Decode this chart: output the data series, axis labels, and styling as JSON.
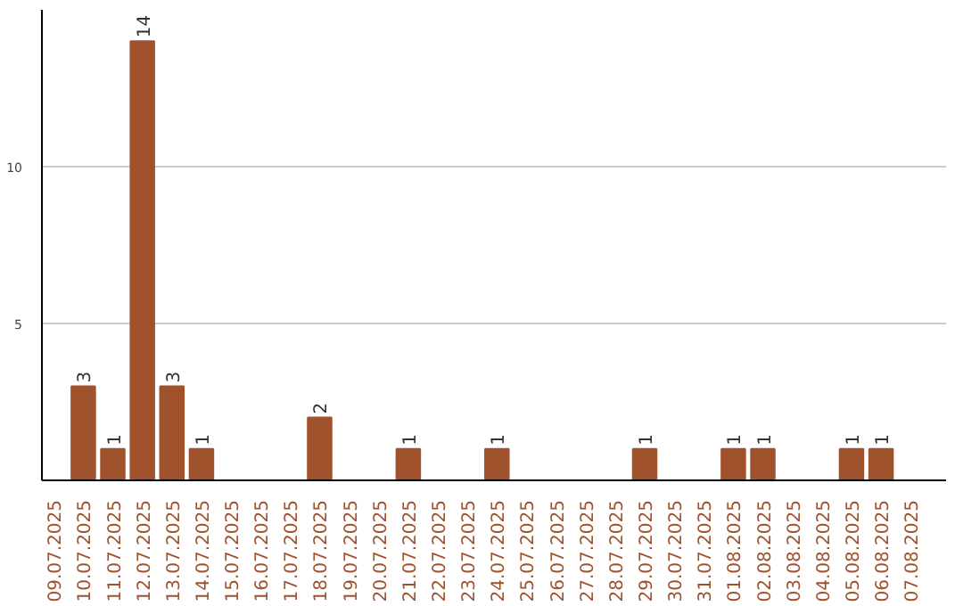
{
  "chart_data": {
    "type": "bar",
    "categories": [
      "09.07.2025",
      "10.07.2025",
      "11.07.2025",
      "12.07.2025",
      "13.07.2025",
      "14.07.2025",
      "15.07.2025",
      "16.07.2025",
      "17.07.2025",
      "18.07.2025",
      "19.07.2025",
      "20.07.2025",
      "21.07.2025",
      "22.07.2025",
      "23.07.2025",
      "24.07.2025",
      "25.07.2025",
      "26.07.2025",
      "27.07.2025",
      "28.07.2025",
      "29.07.2025",
      "30.07.2025",
      "31.07.2025",
      "01.08.2025",
      "02.08.2025",
      "03.08.2025",
      "04.08.2025",
      "05.08.2025",
      "06.08.2025",
      "07.08.2025"
    ],
    "values": [
      0,
      3,
      1,
      14,
      3,
      1,
      0,
      0,
      0,
      2,
      0,
      0,
      1,
      0,
      0,
      1,
      0,
      0,
      0,
      0,
      1,
      0,
      0,
      1,
      1,
      0,
      0,
      1,
      1,
      0
    ],
    "value_labels": [
      null,
      "3",
      "1",
      "14",
      "3",
      "1",
      null,
      null,
      null,
      "2",
      null,
      null,
      "1",
      null,
      null,
      "1",
      null,
      null,
      null,
      null,
      "1",
      null,
      null,
      "1",
      "1",
      null,
      null,
      "1",
      "1",
      null
    ],
    "color": "#a0522d",
    "ylim": [
      0,
      15
    ],
    "yticks": [
      5,
      10
    ],
    "grid": "y"
  }
}
